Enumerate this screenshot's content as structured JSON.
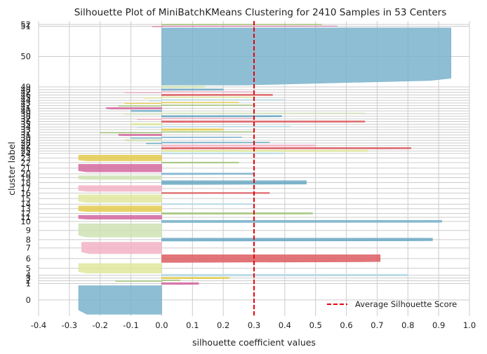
{
  "chart_data": {
    "type": "bar",
    "title": "Silhouette Plot of MiniBatchKMeans Clustering for 2410 Samples in 53 Centers",
    "xlabel": "silhouette coefficient values",
    "ylabel": "cluster label",
    "xlim": [
      -0.4,
      1.0
    ],
    "xticks": [
      "-0.4",
      "-0.3",
      "-0.2",
      "-0.1",
      "0.0",
      "0.1",
      "0.2",
      "0.3",
      "0.4",
      "0.5",
      "0.6",
      "0.7",
      "0.8",
      "0.9",
      "1.0"
    ],
    "grid": true,
    "average_silhouette_score": 0.3,
    "legend": {
      "label": "Average Silhouette Score",
      "position": "lower-right"
    },
    "palette": [
      "#7ab3cd",
      "#d46a9f",
      "#a3c67c",
      "#e4cb4f",
      "#b9dbe8",
      "#e0e79d",
      "#dd5d61",
      "#f2b3c7",
      "#6aa9c3",
      "#cfe2b4"
    ],
    "avg_line_color": "#e8000b",
    "background": "#ffffff",
    "grid_color": "#cccccc",
    "clusters": [
      {
        "label": "0",
        "size": 150,
        "min": -0.27,
        "max": 0.0
      },
      {
        "label": "1",
        "size": 10,
        "min": 0.0,
        "max": 0.12
      },
      {
        "label": "2",
        "size": 8,
        "min": -0.15,
        "max": 0.06
      },
      {
        "label": "3",
        "size": 8,
        "min": 0.0,
        "max": 0.22
      },
      {
        "label": "4",
        "size": 10,
        "min": 0.0,
        "max": 0.8
      },
      {
        "label": "5",
        "size": 50,
        "min": -0.27,
        "max": 0.0
      },
      {
        "label": "6",
        "size": 40,
        "min": 0.0,
        "max": 0.71
      },
      {
        "label": "7",
        "size": 60,
        "min": -0.26,
        "max": 0.0
      },
      {
        "label": "8",
        "size": 15,
        "min": 0.0,
        "max": 0.88
      },
      {
        "label": "9",
        "size": 70,
        "min": -0.27,
        "max": 0.0
      },
      {
        "label": "10",
        "size": 12,
        "min": 0.0,
        "max": 0.91
      },
      {
        "label": "11",
        "size": 20,
        "min": -0.27,
        "max": 0.0
      },
      {
        "label": "12",
        "size": 8,
        "min": 0.0,
        "max": 0.49
      },
      {
        "label": "13",
        "size": 30,
        "min": -0.27,
        "max": 0.0
      },
      {
        "label": "14",
        "size": 6,
        "min": 0.0,
        "max": 0.3
      },
      {
        "label": "15",
        "size": 40,
        "min": -0.27,
        "max": 0.0
      },
      {
        "label": "16",
        "size": 6,
        "min": 0.0,
        "max": 0.35
      },
      {
        "label": "17",
        "size": 30,
        "min": -0.27,
        "max": 0.0
      },
      {
        "label": "18",
        "size": 20,
        "min": 0.0,
        "max": 0.47
      },
      {
        "label": "19",
        "size": 20,
        "min": -0.27,
        "max": 0.0
      },
      {
        "label": "20",
        "size": 8,
        "min": 0.0,
        "max": 0.3
      },
      {
        "label": "21",
        "size": 40,
        "min": -0.27,
        "max": 0.0
      },
      {
        "label": "22",
        "size": 6,
        "min": 0.0,
        "max": 0.25
      },
      {
        "label": "23",
        "size": 30,
        "min": -0.27,
        "max": 0.0
      },
      {
        "label": "24",
        "size": 6,
        "min": 0.0,
        "max": 0.4
      },
      {
        "label": "25",
        "size": 8,
        "min": 0.0,
        "max": 0.67
      },
      {
        "label": "26",
        "size": 8,
        "min": 0.0,
        "max": 0.81
      },
      {
        "label": "27",
        "size": 8,
        "min": 0.0,
        "max": 0.5
      },
      {
        "label": "28",
        "size": 8,
        "min": -0.05,
        "max": 0.35
      },
      {
        "label": "29",
        "size": 8,
        "min": -0.12,
        "max": 0.0
      },
      {
        "label": "30",
        "size": 8,
        "min": -0.1,
        "max": 0.26
      },
      {
        "label": "31",
        "size": 8,
        "min": -0.14,
        "max": 0.0
      },
      {
        "label": "32",
        "size": 8,
        "min": -0.2,
        "max": 0.3
      },
      {
        "label": "33",
        "size": 8,
        "min": 0.0,
        "max": 0.2
      },
      {
        "label": "34",
        "size": 8,
        "min": -0.08,
        "max": 0.42
      },
      {
        "label": "35",
        "size": 8,
        "min": -0.1,
        "max": 0.0
      },
      {
        "label": "36",
        "size": 8,
        "min": 0.0,
        "max": 0.66
      },
      {
        "label": "37",
        "size": 8,
        "min": -0.08,
        "max": 0.3
      },
      {
        "label": "38",
        "size": 8,
        "min": 0.0,
        "max": 0.39
      },
      {
        "label": "39",
        "size": 8,
        "min": -0.12,
        "max": 0.66
      },
      {
        "label": "40",
        "size": 8,
        "min": -0.1,
        "max": 0.0
      },
      {
        "label": "41",
        "size": 8,
        "min": -0.18,
        "max": 0.0
      },
      {
        "label": "42",
        "size": 8,
        "min": -0.14,
        "max": 0.3
      },
      {
        "label": "43",
        "size": 8,
        "min": -0.12,
        "max": 0.25
      },
      {
        "label": "44",
        "size": 8,
        "min": -0.04,
        "max": 0.4
      },
      {
        "label": "45",
        "size": 8,
        "min": -0.06,
        "max": 0.3
      },
      {
        "label": "46",
        "size": 8,
        "min": 0.0,
        "max": 0.36
      },
      {
        "label": "47",
        "size": 8,
        "min": -0.12,
        "max": 0.3
      },
      {
        "label": "48",
        "size": 8,
        "min": 0.0,
        "max": 0.2
      },
      {
        "label": "49",
        "size": 8,
        "min": 0.0,
        "max": 0.14
      },
      {
        "label": "50",
        "size": 300,
        "min": 0.27,
        "max": 0.94
      },
      {
        "label": "51",
        "size": 4,
        "min": -0.03,
        "max": 0.57
      },
      {
        "label": "52",
        "size": 4,
        "min": 0.0,
        "max": 0.52
      }
    ]
  }
}
